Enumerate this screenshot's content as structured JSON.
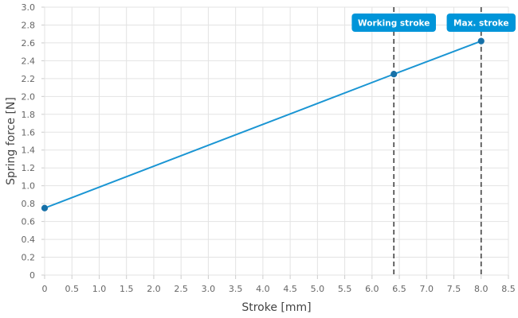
{
  "chart_data": {
    "type": "line",
    "title": "",
    "xlabel": "Stroke [mm]",
    "ylabel": "Spring force [N]",
    "xlim": [
      0,
      8.5
    ],
    "ylim": [
      0,
      3.0
    ],
    "xticks": [
      "0",
      "0.5",
      "1.0",
      "1.5",
      "2.0",
      "2.5",
      "3.0",
      "3.5",
      "4.0",
      "4.5",
      "5.0",
      "5.5",
      "6.0",
      "6.5",
      "7.0",
      "7.5",
      "8.0",
      "8.5"
    ],
    "yticks": [
      "0",
      "0.2",
      "0.4",
      "0.6",
      "0.8",
      "1.0",
      "1.2",
      "1.4",
      "1.6",
      "1.8",
      "2.0",
      "2.2",
      "2.4",
      "2.6",
      "2.8",
      "3.0"
    ],
    "grid": true,
    "series": [
      {
        "color": "#1a95d3",
        "points": [
          {
            "x": 0,
            "y": 0.75
          },
          {
            "x": 6.4,
            "y": 2.25
          },
          {
            "x": 8.0,
            "y": 2.62
          }
        ]
      }
    ],
    "markers": [
      {
        "label": "Working stroke",
        "x": 6.4
      },
      {
        "label": "Max. stroke",
        "x": 8.0
      }
    ],
    "colors": {
      "line": "#1a95d3",
      "point": "#1670a8",
      "badge": "#0095d9",
      "grid": "#e3e3e3",
      "marker_line": "#444444"
    }
  }
}
